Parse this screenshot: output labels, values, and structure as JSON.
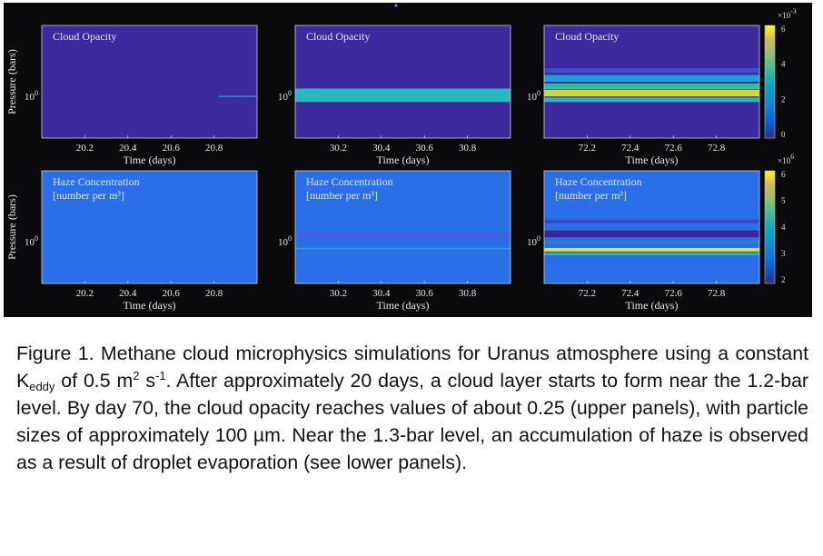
{
  "figure": {
    "rows": [
      {
        "quantity": "opacity",
        "ylabel": "Pressure (bars)",
        "ytick": "10",
        "ytick_exp": "0",
        "panels": [
          {
            "title": "Cloud Opacity",
            "subtitle": "",
            "xlabel": "Time (days)",
            "xticks": [
              "20.2",
              "20.4",
              "20.6",
              "20.8"
            ],
            "bg": "#3d2a9e",
            "bands": [
              {
                "center": 0.63,
                "width": 0.01,
                "color": "#2a88c8",
                "x_start": 0.82
              }
            ]
          },
          {
            "title": "Cloud Opacity",
            "subtitle": "",
            "xlabel": "Time (days)",
            "xticks": [
              "30.2",
              "30.4",
              "30.6",
              "30.8"
            ],
            "bg": "#3d2a9e",
            "bands": [
              {
                "center": 0.62,
                "width": 0.12,
                "color": "#28b8c0"
              }
            ]
          },
          {
            "title": "Cloud Opacity",
            "subtitle": "",
            "xlabel": "Time (days)",
            "xticks": [
              "72.2",
              "72.4",
              "72.6",
              "72.8"
            ],
            "bg": "#3d2a9e",
            "bands": [
              {
                "center": 0.4,
                "width": 0.04,
                "color": "#3a4fd0"
              },
              {
                "center": 0.47,
                "width": 0.06,
                "color": "#1f9fd8"
              },
              {
                "center": 0.54,
                "width": 0.05,
                "color": "#2fc29a"
              },
              {
                "center": 0.6,
                "width": 0.06,
                "color": "#c9df2a"
              },
              {
                "center": 0.66,
                "width": 0.04,
                "color": "#2fb6a8"
              }
            ]
          }
        ],
        "colorbar": {
          "multiplier": "×10",
          "multiplier_exp": "-3",
          "ticks": [
            "6",
            "4",
            "2",
            "0"
          ]
        }
      },
      {
        "quantity": "haze",
        "ylabel": "Pressure (bars)",
        "ytick": "10",
        "ytick_exp": "0",
        "panels": [
          {
            "title": "Haze Concentration",
            "subtitle": "[number per m³]",
            "xlabel": "Time (days)",
            "xticks": [
              "20.2",
              "20.4",
              "20.6",
              "20.8"
            ],
            "bg": "#2a6ee8",
            "bands": []
          },
          {
            "title": "Haze Concentration",
            "subtitle": "[number per m³]",
            "xlabel": "Time (days)",
            "xticks": [
              "30.2",
              "30.4",
              "30.6",
              "30.8"
            ],
            "bg": "#2a6ee8",
            "bands": [
              {
                "center": 0.57,
                "width": 0.012,
                "color": "#6a4fd8"
              },
              {
                "center": 0.69,
                "width": 0.012,
                "color": "#2fa8e0"
              }
            ]
          },
          {
            "title": "Haze Concentration",
            "subtitle": "[number per m³]",
            "xlabel": "Time (days)",
            "xticks": [
              "72.2",
              "72.4",
              "72.6",
              "72.8"
            ],
            "bg": "#2a6ee8",
            "bands": [
              {
                "center": 0.45,
                "width": 0.03,
                "color": "#3646c4"
              },
              {
                "center": 0.56,
                "width": 0.06,
                "color": "#38289a"
              },
              {
                "center": 0.63,
                "width": 0.03,
                "color": "#2f7ad8"
              },
              {
                "center": 0.7,
                "width": 0.03,
                "color": "#e8e32a"
              },
              {
                "center": 0.74,
                "width": 0.02,
                "color": "#2fb5a0"
              }
            ]
          }
        ],
        "colorbar": {
          "multiplier": "×10",
          "multiplier_exp": "6",
          "ticks": [
            "6",
            "5",
            "4",
            "3",
            "2"
          ]
        }
      }
    ]
  },
  "caption": {
    "p1": "Figure 1. Methane cloud microphysics simulations for Uranus atmosphere using a constant K",
    "k_sub": "eddy",
    "p2": " of 0.5 m",
    "m_sup": "2",
    "p3": " s",
    "s_sup": "-1",
    "p4": ". After approximately 20 days, a cloud layer starts to form near the 1.2-bar level. By day 70, the cloud opacity reaches values of about 0.25 (upper panels), with particle sizes of approximately 100 µm. Near the 1.3-bar level, an accumulation of haze is observed as a result of droplet evaporation (see lower panels)."
  },
  "colors": {
    "parula_top": "#f9fb0e",
    "parula_mid": "#2fc29a",
    "parula_bottom": "#352a87"
  }
}
